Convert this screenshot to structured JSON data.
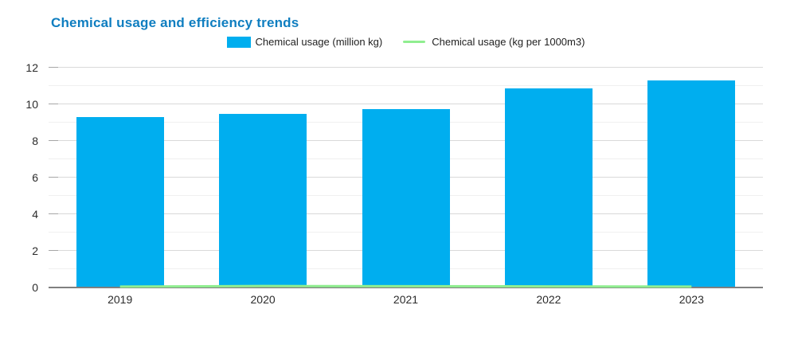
{
  "title": "Chemical usage and efficiency trends",
  "colors": {
    "title": "#0f7ec0",
    "bar": "#00aeef",
    "line": "#90ee90",
    "axis_line": "#808080",
    "grid_major": "#d9d9d9",
    "grid_minor": "#f0f0f0",
    "tick": "#a6a6a6",
    "label_text": "#2b2b2b"
  },
  "legend": [
    {
      "label": "Chemical usage (million kg)",
      "type": "bar",
      "color": "#00aeef"
    },
    {
      "label": "Chemical usage (kg per 1000m3)",
      "type": "line",
      "color": "#90ee90"
    }
  ],
  "chart_data": {
    "type": "bar",
    "title": "Chemical usage and efficiency trends",
    "categories": [
      "2019",
      "2020",
      "2021",
      "2022",
      "2023"
    ],
    "series": [
      {
        "name": "Chemical usage (million kg)",
        "type": "bar",
        "color": "#00aeef",
        "values": [
          9.3,
          9.5,
          9.75,
          10.85,
          11.3
        ]
      },
      {
        "name": "Chemical usage (kg per 1000m3)",
        "type": "line",
        "color": "#90ee90",
        "values": [
          0.05,
          0.08,
          0.07,
          0.06,
          0.05
        ]
      }
    ],
    "xlabel": "",
    "ylabel": "",
    "ylim": [
      0,
      12
    ],
    "yticks": [
      0,
      2,
      4,
      6,
      8,
      10,
      12
    ],
    "grid": true,
    "grid_minor_step": 1,
    "legend_position": "top-center"
  }
}
